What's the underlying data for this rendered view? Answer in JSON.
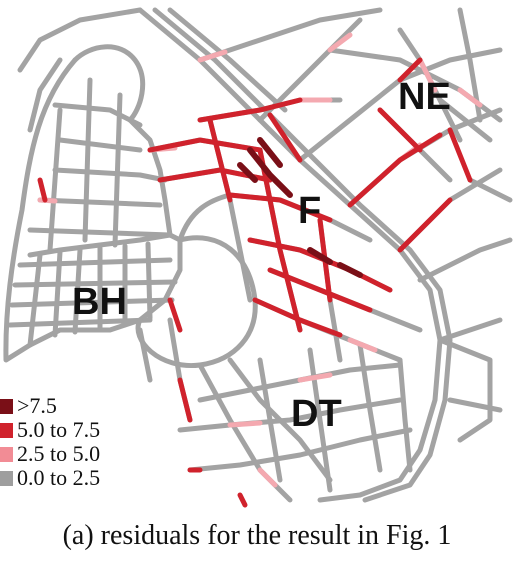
{
  "districts": {
    "ne": "NE",
    "f": "F",
    "bh": "BH",
    "dt": "DT"
  },
  "legend": {
    "items": [
      {
        "label": ">7.5",
        "color": "#7a0f17"
      },
      {
        "label": "5.0 to 7.5",
        "color": "#d0222c"
      },
      {
        "label": "2.5 to 5.0",
        "color": "#f28c95"
      },
      {
        "label": "0.0 to 2.5",
        "color": "#9e9e9e"
      }
    ]
  },
  "caption": "(a) residuals for the result in Fig. 1",
  "colors": {
    "road": "#a3a3a3",
    "band_high": "#7a0f17",
    "band_mid": "#d0222c",
    "band_low": "#f4a9b0"
  }
}
